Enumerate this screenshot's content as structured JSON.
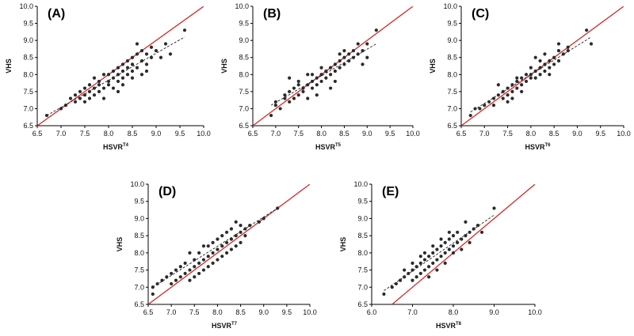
{
  "chart_data": [
    {
      "type": "scatter",
      "panel_label": "(A)",
      "xlabel_main": "HSVR",
      "xlabel_sup": "T4",
      "ylabel": "VHS",
      "xlim": [
        6.5,
        10.0
      ],
      "ylim": [
        6.5,
        10.0
      ],
      "xticks": [
        "6.5",
        "7.0",
        "7.5",
        "8.0",
        "8.5",
        "9.0",
        "9.5",
        "10.0"
      ],
      "yticks": [
        "6.5",
        "7.0",
        "7.5",
        "8.0",
        "8.5",
        "9.0",
        "9.5",
        "10.0"
      ],
      "identity_line": {
        "color": "#d62728",
        "from": [
          6.5,
          6.5
        ],
        "to": [
          10.0,
          10.0
        ]
      },
      "regression_line": {
        "style": "dashed",
        "from": [
          6.7,
          6.8
        ],
        "to": [
          9.6,
          9.1
        ]
      },
      "points": [
        [
          6.7,
          6.8
        ],
        [
          7.0,
          7.0
        ],
        [
          7.1,
          7.1
        ],
        [
          7.2,
          7.3
        ],
        [
          7.3,
          7.2
        ],
        [
          7.3,
          7.4
        ],
        [
          7.4,
          7.3
        ],
        [
          7.4,
          7.5
        ],
        [
          7.5,
          7.4
        ],
        [
          7.5,
          7.6
        ],
        [
          7.5,
          7.2
        ],
        [
          7.6,
          7.7
        ],
        [
          7.6,
          7.5
        ],
        [
          7.6,
          7.3
        ],
        [
          7.7,
          7.6
        ],
        [
          7.7,
          7.9
        ],
        [
          7.7,
          7.4
        ],
        [
          7.8,
          7.7
        ],
        [
          7.8,
          7.5
        ],
        [
          7.8,
          7.8
        ],
        [
          7.9,
          7.6
        ],
        [
          7.9,
          8.0
        ],
        [
          7.9,
          7.3
        ],
        [
          8.0,
          7.8
        ],
        [
          8.0,
          7.7
        ],
        [
          8.0,
          8.0
        ],
        [
          8.1,
          7.9
        ],
        [
          8.1,
          8.1
        ],
        [
          8.1,
          7.6
        ],
        [
          8.2,
          8.0
        ],
        [
          8.2,
          7.8
        ],
        [
          8.2,
          8.2
        ],
        [
          8.2,
          7.5
        ],
        [
          8.3,
          8.1
        ],
        [
          8.3,
          7.9
        ],
        [
          8.3,
          8.3
        ],
        [
          8.3,
          7.7
        ],
        [
          8.4,
          8.2
        ],
        [
          8.4,
          8.0
        ],
        [
          8.4,
          8.4
        ],
        [
          8.5,
          8.3
        ],
        [
          8.5,
          8.1
        ],
        [
          8.5,
          7.9
        ],
        [
          8.5,
          8.5
        ],
        [
          8.6,
          8.2
        ],
        [
          8.6,
          8.9
        ],
        [
          8.6,
          8.6
        ],
        [
          8.7,
          8.4
        ],
        [
          8.7,
          8.0
        ],
        [
          8.7,
          8.7
        ],
        [
          8.8,
          8.3
        ],
        [
          8.8,
          8.6
        ],
        [
          8.8,
          8.1
        ],
        [
          8.9,
          8.5
        ],
        [
          8.9,
          8.8
        ],
        [
          9.0,
          8.7
        ],
        [
          9.1,
          8.5
        ],
        [
          9.2,
          8.9
        ],
        [
          9.3,
          8.6
        ],
        [
          9.6,
          9.3
        ]
      ]
    },
    {
      "type": "scatter",
      "panel_label": "(B)",
      "xlabel_main": "HSVR",
      "xlabel_sup": "T5",
      "ylabel": "VHS",
      "xlim": [
        6.5,
        10.0
      ],
      "ylim": [
        6.5,
        10.0
      ],
      "xticks": [
        "6.5",
        "7.0",
        "7.5",
        "8.0",
        "8.5",
        "9.0",
        "9.5",
        "10.0"
      ],
      "yticks": [
        "6.5",
        "7.0",
        "7.5",
        "8.0",
        "8.5",
        "9.0",
        "9.5",
        "10.0"
      ],
      "identity_line": {
        "color": "#d62728",
        "from": [
          6.5,
          6.5
        ],
        "to": [
          10.0,
          10.0
        ]
      },
      "regression_line": {
        "style": "dashed",
        "from": [
          6.9,
          7.1
        ],
        "to": [
          9.2,
          8.9
        ]
      },
      "points": [
        [
          6.9,
          6.8
        ],
        [
          7.0,
          7.1
        ],
        [
          7.0,
          7.2
        ],
        [
          7.1,
          7.0
        ],
        [
          7.2,
          7.3
        ],
        [
          7.2,
          7.4
        ],
        [
          7.3,
          7.2
        ],
        [
          7.3,
          7.5
        ],
        [
          7.3,
          7.9
        ],
        [
          7.4,
          7.6
        ],
        [
          7.4,
          7.3
        ],
        [
          7.5,
          7.4
        ],
        [
          7.5,
          7.7
        ],
        [
          7.5,
          7.8
        ],
        [
          7.6,
          7.5
        ],
        [
          7.6,
          7.6
        ],
        [
          7.7,
          7.7
        ],
        [
          7.7,
          8.0
        ],
        [
          7.7,
          7.3
        ],
        [
          7.8,
          7.8
        ],
        [
          7.8,
          7.6
        ],
        [
          7.8,
          8.0
        ],
        [
          7.9,
          7.9
        ],
        [
          7.9,
          7.7
        ],
        [
          7.9,
          7.4
        ],
        [
          8.0,
          8.0
        ],
        [
          8.0,
          7.8
        ],
        [
          8.0,
          8.2
        ],
        [
          8.1,
          8.1
        ],
        [
          8.1,
          7.9
        ],
        [
          8.2,
          8.2
        ],
        [
          8.2,
          8.0
        ],
        [
          8.2,
          7.6
        ],
        [
          8.3,
          8.3
        ],
        [
          8.3,
          8.1
        ],
        [
          8.3,
          7.8
        ],
        [
          8.4,
          8.4
        ],
        [
          8.4,
          8.2
        ],
        [
          8.4,
          8.6
        ],
        [
          8.5,
          8.5
        ],
        [
          8.5,
          8.3
        ],
        [
          8.5,
          8.7
        ],
        [
          8.6,
          8.6
        ],
        [
          8.6,
          8.4
        ],
        [
          8.7,
          8.5
        ],
        [
          8.7,
          8.7
        ],
        [
          8.8,
          8.9
        ],
        [
          8.8,
          8.6
        ],
        [
          8.9,
          8.7
        ],
        [
          8.9,
          8.3
        ],
        [
          9.0,
          8.9
        ],
        [
          9.0,
          8.5
        ],
        [
          9.2,
          9.3
        ]
      ]
    },
    {
      "type": "scatter",
      "panel_label": "(C)",
      "xlabel_main": "HSVR",
      "xlabel_sup": "T6",
      "ylabel": "VHS",
      "xlim": [
        6.5,
        10.0
      ],
      "ylim": [
        6.5,
        10.0
      ],
      "xticks": [
        "6.5",
        "7.0",
        "7.5",
        "8.0",
        "8.5",
        "9.0",
        "9.5",
        "10.0"
      ],
      "yticks": [
        "6.5",
        "7.0",
        "7.5",
        "8.0",
        "8.5",
        "9.0",
        "9.5",
        "10.0"
      ],
      "identity_line": {
        "color": "#d62728",
        "from": [
          6.5,
          6.5
        ],
        "to": [
          10.0,
          10.0
        ]
      },
      "regression_line": {
        "style": "dashed",
        "from": [
          6.7,
          6.9
        ],
        "to": [
          9.3,
          9.1
        ]
      },
      "points": [
        [
          6.7,
          6.8
        ],
        [
          6.8,
          7.0
        ],
        [
          6.9,
          7.0
        ],
        [
          7.0,
          7.1
        ],
        [
          7.1,
          7.2
        ],
        [
          7.2,
          7.3
        ],
        [
          7.2,
          7.1
        ],
        [
          7.3,
          7.4
        ],
        [
          7.3,
          7.7
        ],
        [
          7.4,
          7.5
        ],
        [
          7.4,
          7.3
        ],
        [
          7.5,
          7.4
        ],
        [
          7.5,
          7.6
        ],
        [
          7.5,
          7.2
        ],
        [
          7.6,
          7.7
        ],
        [
          7.6,
          7.5
        ],
        [
          7.6,
          7.3
        ],
        [
          7.7,
          7.8
        ],
        [
          7.7,
          7.6
        ],
        [
          7.7,
          7.9
        ],
        [
          7.8,
          7.7
        ],
        [
          7.8,
          7.5
        ],
        [
          7.8,
          7.9
        ],
        [
          7.9,
          8.0
        ],
        [
          7.9,
          7.8
        ],
        [
          8.0,
          8.0
        ],
        [
          8.0,
          7.9
        ],
        [
          8.0,
          8.2
        ],
        [
          8.1,
          8.1
        ],
        [
          8.1,
          8.5
        ],
        [
          8.1,
          7.9
        ],
        [
          8.2,
          8.2
        ],
        [
          8.2,
          8.4
        ],
        [
          8.2,
          8.0
        ],
        [
          8.3,
          8.3
        ],
        [
          8.3,
          8.1
        ],
        [
          8.3,
          8.6
        ],
        [
          8.4,
          8.4
        ],
        [
          8.4,
          8.2
        ],
        [
          8.4,
          8.0
        ],
        [
          8.5,
          8.5
        ],
        [
          8.5,
          8.3
        ],
        [
          8.6,
          8.7
        ],
        [
          8.6,
          8.9
        ],
        [
          8.6,
          8.4
        ],
        [
          8.7,
          8.6
        ],
        [
          8.8,
          8.7
        ],
        [
          8.8,
          8.8
        ],
        [
          9.2,
          9.3
        ],
        [
          9.3,
          8.9
        ]
      ]
    },
    {
      "type": "scatter",
      "panel_label": "(D)",
      "xlabel_main": "HSVR",
      "xlabel_sup": "T7",
      "ylabel": "VHS",
      "xlim": [
        6.5,
        10.0
      ],
      "ylim": [
        6.5,
        10.0
      ],
      "xticks": [
        "6.5",
        "7.0",
        "7.5",
        "8.0",
        "8.5",
        "9.0",
        "9.5",
        "10.0"
      ],
      "yticks": [
        "6.5",
        "7.0",
        "7.5",
        "8.0",
        "8.5",
        "9.0",
        "9.5",
        "10.0"
      ],
      "identity_line": {
        "color": "#d62728",
        "from": [
          6.5,
          6.5
        ],
        "to": [
          10.0,
          10.0
        ]
      },
      "regression_line": {
        "style": "dashed",
        "from": [
          6.6,
          7.0
        ],
        "to": [
          9.3,
          9.3
        ]
      },
      "points": [
        [
          6.6,
          6.8
        ],
        [
          6.6,
          7.0
        ],
        [
          6.7,
          7.1
        ],
        [
          6.8,
          7.2
        ],
        [
          6.9,
          7.3
        ],
        [
          7.0,
          7.1
        ],
        [
          7.0,
          7.4
        ],
        [
          7.1,
          7.2
        ],
        [
          7.1,
          7.5
        ],
        [
          7.2,
          7.3
        ],
        [
          7.2,
          7.6
        ],
        [
          7.3,
          7.4
        ],
        [
          7.3,
          7.7
        ],
        [
          7.4,
          7.5
        ],
        [
          7.4,
          7.2
        ],
        [
          7.4,
          8.0
        ],
        [
          7.5,
          7.6
        ],
        [
          7.5,
          7.8
        ],
        [
          7.5,
          7.3
        ],
        [
          7.6,
          7.7
        ],
        [
          7.6,
          8.0
        ],
        [
          7.6,
          7.4
        ],
        [
          7.7,
          7.8
        ],
        [
          7.7,
          7.5
        ],
        [
          7.7,
          8.2
        ],
        [
          7.8,
          7.9
        ],
        [
          7.8,
          7.6
        ],
        [
          7.8,
          8.2
        ],
        [
          7.9,
          8.0
        ],
        [
          7.9,
          7.7
        ],
        [
          7.9,
          8.3
        ],
        [
          8.0,
          8.1
        ],
        [
          8.0,
          7.8
        ],
        [
          8.0,
          8.4
        ],
        [
          8.1,
          8.2
        ],
        [
          8.1,
          7.9
        ],
        [
          8.1,
          8.5
        ],
        [
          8.2,
          8.3
        ],
        [
          8.2,
          8.0
        ],
        [
          8.2,
          8.6
        ],
        [
          8.3,
          8.4
        ],
        [
          8.3,
          8.1
        ],
        [
          8.3,
          8.7
        ],
        [
          8.4,
          8.5
        ],
        [
          8.4,
          8.2
        ],
        [
          8.4,
          8.9
        ],
        [
          8.5,
          8.6
        ],
        [
          8.5,
          8.3
        ],
        [
          8.5,
          8.8
        ],
        [
          8.6,
          8.5
        ],
        [
          8.6,
          8.7
        ],
        [
          8.7,
          8.8
        ],
        [
          8.9,
          8.9
        ],
        [
          9.0,
          9.0
        ],
        [
          9.3,
          9.3
        ]
      ]
    },
    {
      "type": "scatter",
      "panel_label": "(E)",
      "xlabel_main": "HSVR",
      "xlabel_sup": "T8",
      "ylabel": "VHS",
      "xlim": [
        6.0,
        10.0
      ],
      "ylim": [
        6.5,
        10.0
      ],
      "xticks": [
        "6.0",
        "7.0",
        "8.0",
        "9.0",
        "10.0"
      ],
      "yticks": [
        "6.5",
        "7.0",
        "7.5",
        "8.0",
        "8.5",
        "9.0",
        "9.5",
        "10.0"
      ],
      "identity_line": {
        "color": "#d62728",
        "from": [
          6.5,
          6.5
        ],
        "to": [
          10.0,
          10.0
        ]
      },
      "regression_line": {
        "style": "dashed",
        "from": [
          6.3,
          6.9
        ],
        "to": [
          9.0,
          9.1
        ]
      },
      "points": [
        [
          6.3,
          6.8
        ],
        [
          6.5,
          7.0
        ],
        [
          6.6,
          7.1
        ],
        [
          6.7,
          7.2
        ],
        [
          6.8,
          7.3
        ],
        [
          6.8,
          7.5
        ],
        [
          6.9,
          7.4
        ],
        [
          7.0,
          7.2
        ],
        [
          7.0,
          7.5
        ],
        [
          7.0,
          7.7
        ],
        [
          7.1,
          7.3
        ],
        [
          7.1,
          7.6
        ],
        [
          7.2,
          7.4
        ],
        [
          7.2,
          7.7
        ],
        [
          7.2,
          7.9
        ],
        [
          7.3,
          7.5
        ],
        [
          7.3,
          7.8
        ],
        [
          7.3,
          8.0
        ],
        [
          7.4,
          7.6
        ],
        [
          7.4,
          7.9
        ],
        [
          7.4,
          7.3
        ],
        [
          7.5,
          7.7
        ],
        [
          7.5,
          8.0
        ],
        [
          7.5,
          8.2
        ],
        [
          7.6,
          7.8
        ],
        [
          7.6,
          8.1
        ],
        [
          7.6,
          7.5
        ],
        [
          7.7,
          7.9
        ],
        [
          7.7,
          8.2
        ],
        [
          7.7,
          8.4
        ],
        [
          7.8,
          8.0
        ],
        [
          7.8,
          8.3
        ],
        [
          7.8,
          7.7
        ],
        [
          7.9,
          8.1
        ],
        [
          7.9,
          8.4
        ],
        [
          7.9,
          8.6
        ],
        [
          8.0,
          8.2
        ],
        [
          8.0,
          8.5
        ],
        [
          8.0,
          8.0
        ],
        [
          8.1,
          8.3
        ],
        [
          8.1,
          8.6
        ],
        [
          8.2,
          8.4
        ],
        [
          8.2,
          8.1
        ],
        [
          8.3,
          8.5
        ],
        [
          8.3,
          8.9
        ],
        [
          8.4,
          8.6
        ],
        [
          8.4,
          8.3
        ],
        [
          8.5,
          8.7
        ],
        [
          8.6,
          8.8
        ],
        [
          8.7,
          8.6
        ],
        [
          9.0,
          9.3
        ]
      ]
    }
  ]
}
